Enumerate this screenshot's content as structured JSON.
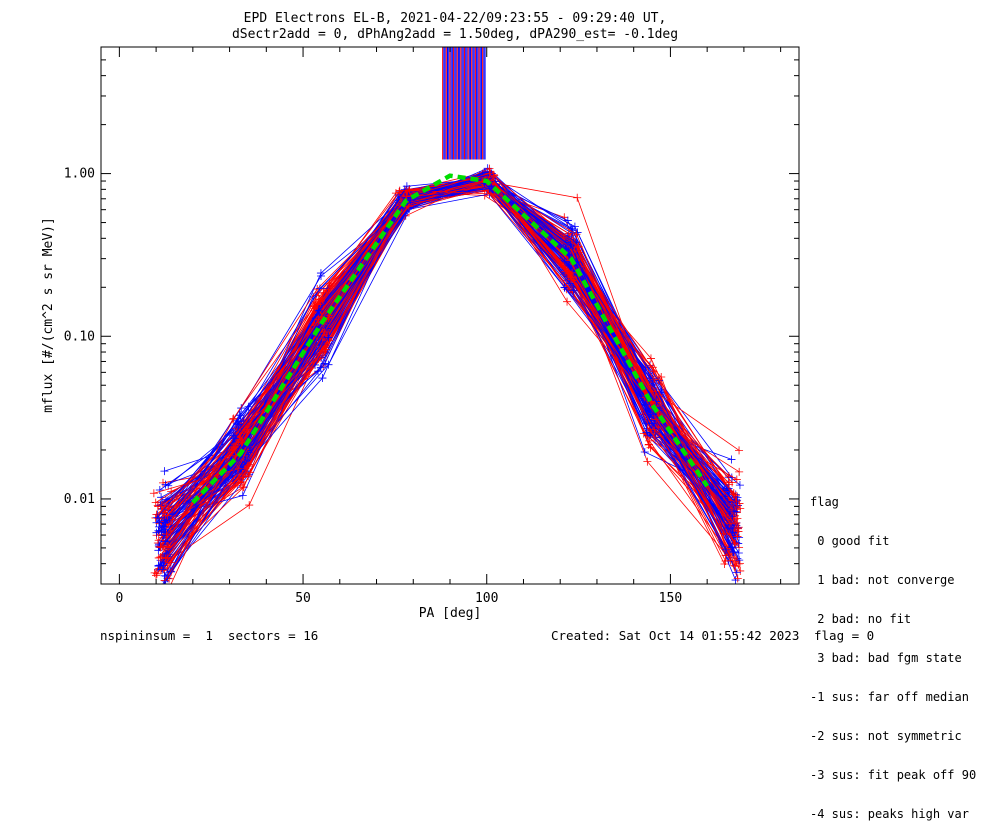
{
  "chart_data": {
    "type": "line",
    "title_line1": "EPD Electrons EL-B, 2021-04-22/09:23:55 - 09:29:40 UT,",
    "title_line2": "dSectr2add = 0, dPhAng2add = 1.50deg, dPA290_est=  -0.1deg",
    "xlabel": "PA [deg]",
    "ylabel": "mflux [#/(cm^2 s sr MeV)]",
    "xlim": [
      -5,
      185
    ],
    "ylim": [
      0.003,
      6.0
    ],
    "yscale": "log",
    "x_ticks": [
      0,
      50,
      100,
      150
    ],
    "y_ticks": [
      {
        "value": 0.01,
        "label": "0.01"
      },
      {
        "value": 0.1,
        "label": "0.10"
      },
      {
        "value": 1.0,
        "label": "1.00"
      }
    ],
    "pa_bins": [
      12,
      33,
      55,
      78,
      100,
      123,
      145,
      167
    ],
    "median_fit": {
      "color": "#00dd00",
      "style": "dashed",
      "x": [
        20,
        33,
        55,
        78,
        90,
        100,
        123,
        145,
        160
      ],
      "y": [
        0.0095,
        0.019,
        0.12,
        0.68,
        0.97,
        0.9,
        0.3,
        0.038,
        0.012
      ]
    },
    "series_colors": {
      "a": "#0000ff",
      "b": "#ff0000"
    },
    "legend": {
      "title": "flag",
      "entries": [
        " 0 good fit",
        " 1 bad: not converge",
        " 2 bad: no fit",
        " 3 bad: bad fgm state",
        "-1 sus: far off median",
        "-2 sus: not symmetric",
        "-3 sus: fit peak off 90",
        "-4 sus: peaks high var"
      ]
    }
  },
  "footer": {
    "left": "nspininsum =  1  sectors = 16",
    "created": "Created: Sat Oct 14 01:55:42 2023",
    "flag": "flag = 0"
  }
}
